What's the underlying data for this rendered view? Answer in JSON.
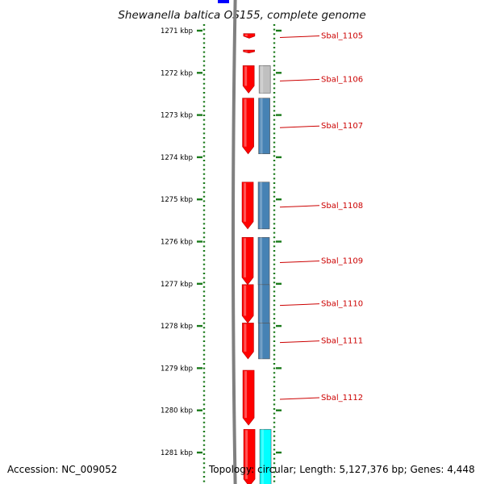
{
  "title": "Shewanella baltica OS155, complete genome",
  "accession_text": "Accession: NC_009052",
  "summary_text": "Topology: circular; Length: 5,127,376 bp; Genes: 4,448",
  "colors": {
    "backbone": "#808080",
    "ruler_tick": "#1a7a1a",
    "forward_gene": "#ff0000",
    "cog_blue": "#4682b4",
    "cog_gray": "#c0c0c0",
    "cog_cyan": "#00ffff",
    "rna_blue": "#0000ff",
    "label": "#cc0000"
  },
  "ruler": {
    "unit": "kbp",
    "ticks": [
      {
        "kbp": 1271,
        "label": "1271 kbp"
      },
      {
        "kbp": 1272,
        "label": "1272 kbp"
      },
      {
        "kbp": 1273,
        "label": "1273 kbp"
      },
      {
        "kbp": 1274,
        "label": "1274 kbp"
      },
      {
        "kbp": 1275,
        "label": "1275 kbp"
      },
      {
        "kbp": 1276,
        "label": "1276 kbp"
      },
      {
        "kbp": 1277,
        "label": "1277 kbp"
      },
      {
        "kbp": 1278,
        "label": "1278 kbp"
      },
      {
        "kbp": 1279,
        "label": "1279 kbp"
      },
      {
        "kbp": 1280,
        "label": "1280 kbp"
      },
      {
        "kbp": 1281,
        "label": "1281 kbp"
      }
    ]
  },
  "genes": [
    {
      "id": "Sbal_1105",
      "label": "Sbal_1105",
      "start_kbp": 1271.07,
      "end_kbp": 1271.18,
      "cog": null
    },
    {
      "id": "Sbal_1105b",
      "label": "",
      "start_kbp": 1271.46,
      "end_kbp": 1271.53,
      "cog": null
    },
    {
      "id": "Sbal_1106",
      "label": "Sbal_1106",
      "start_kbp": 1271.83,
      "end_kbp": 1272.48,
      "cog": "gray"
    },
    {
      "id": "Sbal_1107",
      "label": "Sbal_1107",
      "start_kbp": 1272.6,
      "end_kbp": 1273.92,
      "cog": "blue"
    },
    {
      "id": "Sbal_1108",
      "label": "Sbal_1108",
      "start_kbp": 1274.59,
      "end_kbp": 1275.7,
      "cog": "blue"
    },
    {
      "id": "Sbal_1109",
      "label": "Sbal_1109",
      "start_kbp": 1275.9,
      "end_kbp": 1277.02,
      "cog": "blue"
    },
    {
      "id": "Sbal_1110",
      "label": "Sbal_1110",
      "start_kbp": 1277.02,
      "end_kbp": 1277.93,
      "cog": "blue"
    },
    {
      "id": "Sbal_1111",
      "label": "Sbal_1111",
      "start_kbp": 1277.93,
      "end_kbp": 1278.78,
      "cog": "blue"
    },
    {
      "id": "Sbal_1112",
      "label": "Sbal_1112",
      "start_kbp": 1279.05,
      "end_kbp": 1280.35,
      "cog": null
    },
    {
      "id": "Sbal_1113",
      "label": "",
      "start_kbp": 1280.45,
      "end_kbp": 1281.8,
      "cog": "cyan"
    }
  ]
}
